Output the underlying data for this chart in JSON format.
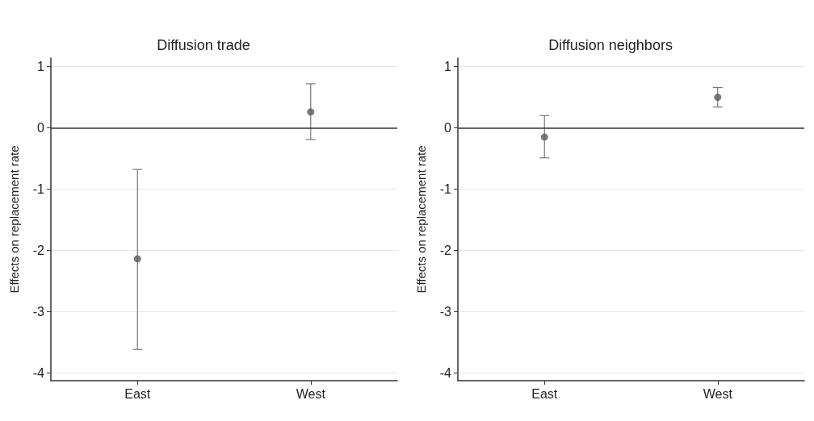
{
  "chart_data": [
    {
      "type": "scatter",
      "title": "Diffusion trade",
      "ylabel": "Effects on replacement rate",
      "categories": [
        "East",
        "West"
      ],
      "series": [
        {
          "color": "#5a5a5a",
          "values": [
            -2.14,
            0.26
          ],
          "errors": [
            [
              -3.62,
              -0.68
            ],
            [
              -0.19,
              0.72
            ]
          ]
        }
      ],
      "ylim": [
        -4.13,
        1.14
      ],
      "yticks": [
        -4,
        -3,
        -2,
        -1,
        0,
        1
      ],
      "grid": "y",
      "marker": "circle",
      "ref_lines": [
        {
          "axis": "y",
          "value": 0,
          "color": "#333333"
        }
      ]
    },
    {
      "type": "scatter",
      "title": "Diffusion neighbors",
      "ylabel": "Effects on replacement rate",
      "categories": [
        "East",
        "West"
      ],
      "series": [
        {
          "color": "#5a5a5a",
          "values": [
            -0.15,
            0.5
          ],
          "errors": [
            [
              -0.49,
              0.2
            ],
            [
              0.34,
              0.66
            ]
          ]
        }
      ],
      "ylim": [
        -4.13,
        1.14
      ],
      "yticks": [
        -4,
        -3,
        -2,
        -1,
        0,
        1
      ],
      "grid": "y",
      "marker": "circle",
      "ref_lines": [
        {
          "axis": "y",
          "value": 0,
          "color": "#333333"
        }
      ]
    }
  ]
}
